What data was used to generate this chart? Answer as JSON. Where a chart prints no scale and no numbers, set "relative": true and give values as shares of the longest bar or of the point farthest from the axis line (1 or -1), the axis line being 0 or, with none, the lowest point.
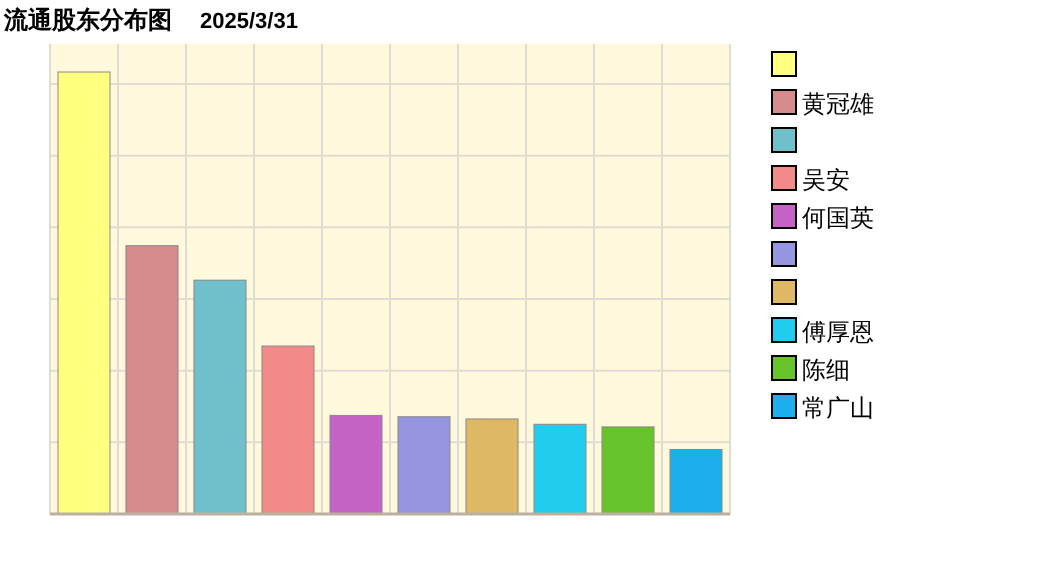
{
  "chart_data": {
    "type": "bar",
    "title": "流通股东分布图",
    "subtitle": "2025/3/31",
    "stacked": true,
    "categories": [
      null,
      null,
      null,
      null,
      null,
      null,
      null,
      null,
      null,
      null
    ],
    "series": [
      {
        "color": "#ffff80",
        "values": [
          1,
          null,
          null,
          null,
          null,
          null,
          null,
          null,
          null,
          null
        ]
      },
      {
        "name": "黄冠雄",
        "color": "#d68c8c",
        "values": [
          null,
          0.607,
          null,
          null,
          null,
          null,
          null,
          null,
          null,
          null
        ]
      },
      {
        "color": "#70c0cc",
        "values": [
          null,
          null,
          0.529,
          null,
          null,
          null,
          null,
          null,
          null,
          null
        ]
      },
      {
        "name": "吴安",
        "color": "#f28a8a",
        "values": [
          null,
          null,
          null,
          0.38,
          null,
          null,
          null,
          null,
          null,
          null
        ]
      },
      {
        "name": "何国英",
        "color": "#c463c4",
        "values": [
          null,
          null,
          null,
          null,
          0.223,
          null,
          null,
          null,
          null,
          null
        ]
      },
      {
        "color": "#9595e0",
        "values": [
          null,
          null,
          null,
          null,
          null,
          0.22,
          null,
          null,
          null,
          null
        ]
      },
      {
        "color": "#dfb866",
        "values": [
          null,
          null,
          null,
          null,
          null,
          null,
          0.215,
          null,
          null,
          null
        ]
      },
      {
        "name": "傅厚恩",
        "color": "#22ccee",
        "values": [
          null,
          null,
          null,
          null,
          null,
          null,
          null,
          0.203,
          null,
          null
        ]
      },
      {
        "name": "陈细",
        "color": "#66c32a",
        "values": [
          null,
          null,
          null,
          null,
          null,
          null,
          null,
          null,
          0.197,
          null
        ]
      },
      {
        "name": "常广山",
        "color": "#1daeee",
        "values": [
          null,
          null,
          null,
          null,
          null,
          null,
          null,
          null,
          null,
          0.146
        ]
      }
    ],
    "relative": true,
    "grid": true,
    "legend": "right"
  }
}
